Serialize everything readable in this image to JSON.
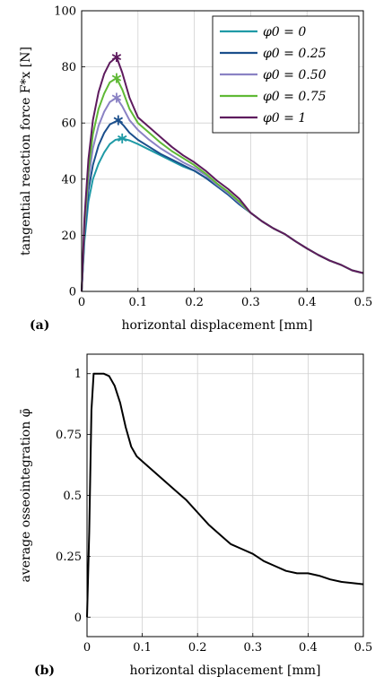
{
  "chart_data": [
    {
      "panel_label": "(a)",
      "type": "line",
      "xlabel": "horizontal displacement [mm]",
      "ylabel": "tangential reaction force F*x [N]",
      "xlim": [
        0,
        0.5
      ],
      "ylim": [
        0,
        100
      ],
      "xticks": [
        "0",
        "0.1",
        "0.2",
        "0.3",
        "0.4",
        "0.5"
      ],
      "yticks": [
        "0",
        "20",
        "40",
        "60",
        "80",
        "100"
      ],
      "grid": true,
      "legend_position": "top-right",
      "series": [
        {
          "name": "φ0 = 0",
          "color": "#1f9aa6",
          "peak": [
            0.072,
            54.5
          ],
          "x": [
            0,
            0.005,
            0.012,
            0.02,
            0.03,
            0.04,
            0.05,
            0.06,
            0.072,
            0.085,
            0.1,
            0.12,
            0.14,
            0.16,
            0.18,
            0.2,
            0.22,
            0.24,
            0.26,
            0.28,
            0.3,
            0.32,
            0.34,
            0.36,
            0.38,
            0.4,
            0.42,
            0.44,
            0.46,
            0.48,
            0.5
          ],
          "y": [
            0,
            18,
            32,
            40,
            45.5,
            49.5,
            52.5,
            54,
            54.5,
            53.8,
            52.5,
            50.5,
            48.5,
            46.5,
            44.5,
            43,
            40.5,
            37.5,
            34.5,
            31,
            28,
            25,
            22.5,
            20.5,
            17.8,
            15.3,
            13,
            11,
            9.5,
            7.5,
            6.5
          ]
        },
        {
          "name": "φ0 = 0.25",
          "color": "#1b4f8c",
          "peak": [
            0.065,
            61
          ],
          "x": [
            0,
            0.005,
            0.012,
            0.02,
            0.03,
            0.04,
            0.05,
            0.065,
            0.075,
            0.085,
            0.1,
            0.12,
            0.14,
            0.16,
            0.18,
            0.2,
            0.22,
            0.24,
            0.26,
            0.28,
            0.3,
            0.32,
            0.34,
            0.36,
            0.38,
            0.4,
            0.42,
            0.44,
            0.46,
            0.48,
            0.5
          ],
          "y": [
            0,
            20,
            36,
            45,
            52,
            56.5,
            59.5,
            61,
            59,
            56.5,
            54,
            51.5,
            49,
            47,
            45,
            43,
            40.5,
            37.5,
            34.5,
            31,
            28,
            25,
            22.5,
            20.5,
            17.8,
            15.3,
            13,
            11,
            9.5,
            7.5,
            6.5
          ]
        },
        {
          "name": "φ0 = 0.50",
          "color": "#8a82c4",
          "peak": [
            0.062,
            69
          ],
          "x": [
            0,
            0.005,
            0.012,
            0.02,
            0.03,
            0.04,
            0.05,
            0.062,
            0.072,
            0.085,
            0.1,
            0.12,
            0.14,
            0.16,
            0.18,
            0.2,
            0.22,
            0.24,
            0.26,
            0.28,
            0.3,
            0.32,
            0.34,
            0.36,
            0.38,
            0.4,
            0.42,
            0.44,
            0.46,
            0.48,
            0.5
          ],
          "y": [
            0,
            22,
            40,
            51,
            59,
            64,
            67.5,
            69,
            66,
            61,
            57.5,
            54,
            51,
            48.5,
            46,
            44,
            41.5,
            38,
            35,
            31.5,
            28,
            25,
            22.5,
            20.5,
            17.8,
            15.3,
            13,
            11,
            9.5,
            7.5,
            6.5
          ]
        },
        {
          "name": "φ0 = 0.75",
          "color": "#5fb935",
          "peak": [
            0.062,
            76
          ],
          "x": [
            0,
            0.005,
            0.012,
            0.02,
            0.03,
            0.04,
            0.05,
            0.062,
            0.072,
            0.085,
            0.1,
            0.12,
            0.14,
            0.16,
            0.18,
            0.2,
            0.22,
            0.24,
            0.26,
            0.28,
            0.3,
            0.32,
            0.34,
            0.36,
            0.38,
            0.4,
            0.42,
            0.44,
            0.46,
            0.48,
            0.5
          ],
          "y": [
            0,
            24,
            43,
            56,
            65,
            70.5,
            74.5,
            76,
            72,
            65,
            60,
            56.5,
            53,
            50,
            47.5,
            45,
            42,
            38.5,
            35.5,
            32,
            28,
            25,
            22.5,
            20.5,
            17.8,
            15.3,
            13,
            11,
            9.5,
            7.5,
            6.5
          ]
        },
        {
          "name": "φ0 = 1",
          "color": "#5e1b5e",
          "peak": [
            0.062,
            83.5
          ],
          "x": [
            0,
            0.005,
            0.012,
            0.02,
            0.03,
            0.04,
            0.05,
            0.062,
            0.072,
            0.085,
            0.1,
            0.12,
            0.14,
            0.16,
            0.18,
            0.2,
            0.22,
            0.24,
            0.26,
            0.28,
            0.3,
            0.32,
            0.34,
            0.36,
            0.38,
            0.4,
            0.42,
            0.44,
            0.46,
            0.48,
            0.5
          ],
          "y": [
            0,
            26,
            47,
            61,
            71,
            77.5,
            81.5,
            83.5,
            78,
            69,
            62,
            58.5,
            55,
            51.5,
            48.5,
            46,
            43,
            39.5,
            36.5,
            33,
            28,
            25,
            22.5,
            20.5,
            17.8,
            15.3,
            13,
            11,
            9.5,
            7.5,
            6.5
          ]
        }
      ]
    },
    {
      "panel_label": "(b)",
      "type": "line",
      "xlabel": "horizontal displacement [mm]",
      "ylabel": "average osseointegration φ̄",
      "xlim": [
        0,
        0.5
      ],
      "ylim": [
        -0.08,
        1.08
      ],
      "xticks": [
        "0",
        "0.1",
        "0.2",
        "0.3",
        "0.4",
        "0.5"
      ],
      "yticks": [
        "0",
        "0.25",
        "0.5",
        "0.75",
        "1"
      ],
      "grid": true,
      "series": [
        {
          "color": "#000000",
          "x": [
            0,
            0.004,
            0.008,
            0.012,
            0.02,
            0.03,
            0.04,
            0.05,
            0.06,
            0.07,
            0.08,
            0.09,
            0.1,
            0.12,
            0.14,
            0.16,
            0.18,
            0.2,
            0.22,
            0.24,
            0.26,
            0.28,
            0.3,
            0.32,
            0.34,
            0.36,
            0.38,
            0.4,
            0.42,
            0.44,
            0.46,
            0.48,
            0.5
          ],
          "y": [
            0,
            0.35,
            0.85,
            1.0,
            1.0,
            1.0,
            0.99,
            0.95,
            0.88,
            0.78,
            0.7,
            0.66,
            0.64,
            0.6,
            0.56,
            0.52,
            0.48,
            0.43,
            0.38,
            0.34,
            0.3,
            0.28,
            0.26,
            0.23,
            0.21,
            0.19,
            0.18,
            0.18,
            0.17,
            0.155,
            0.145,
            0.14,
            0.135
          ]
        }
      ]
    }
  ]
}
